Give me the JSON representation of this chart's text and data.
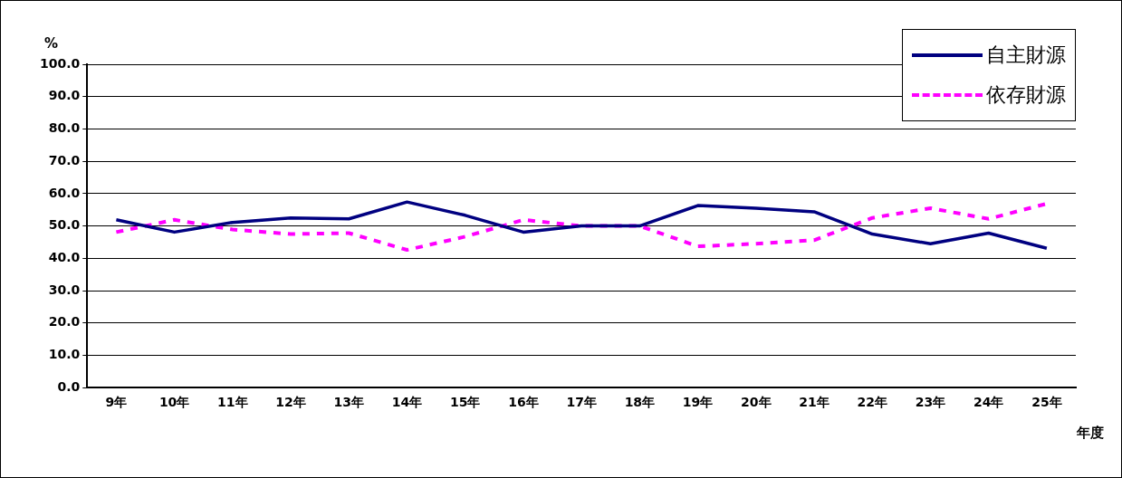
{
  "chart_data": {
    "type": "line",
    "ylabel": "%",
    "xlabel": "年度",
    "categories": [
      "9年",
      "10年",
      "11年",
      "12年",
      "13年",
      "14年",
      "15年",
      "16年",
      "17年",
      "18年",
      "19年",
      "20年",
      "21年",
      "22年",
      "23年",
      "24年",
      "25年"
    ],
    "series": [
      {
        "name": "自主財源",
        "color": "#000080",
        "line_style": "solid",
        "values": [
          51.9,
          48.1,
          51.1,
          52.5,
          52.2,
          57.4,
          53.3,
          48.1,
          50.0,
          50.0,
          56.3,
          55.5,
          54.4,
          47.5,
          44.5,
          47.8,
          43.1
        ]
      },
      {
        "name": "依存財源",
        "color": "#ff00ff",
        "line_style": "dashed",
        "values": [
          48.1,
          51.9,
          48.9,
          47.5,
          47.8,
          42.6,
          46.7,
          51.9,
          50.0,
          50.0,
          43.7,
          44.5,
          45.6,
          52.5,
          55.5,
          52.2,
          56.9
        ]
      }
    ],
    "ylim": [
      0,
      100
    ],
    "yticks": [
      {
        "value": 0,
        "label": "0.0"
      },
      {
        "value": 10,
        "label": "10.0"
      },
      {
        "value": 20,
        "label": "20.0"
      },
      {
        "value": 30,
        "label": "30.0"
      },
      {
        "value": 40,
        "label": "40.0"
      },
      {
        "value": 50,
        "label": "50.0"
      },
      {
        "value": 60,
        "label": "60.0"
      },
      {
        "value": 70,
        "label": "70.0"
      },
      {
        "value": 80,
        "label": "80.0"
      },
      {
        "value": 90,
        "label": "90.0"
      },
      {
        "value": 100,
        "label": "100.0"
      }
    ],
    "grid": "y",
    "legend": "top right",
    "marker": "none"
  }
}
